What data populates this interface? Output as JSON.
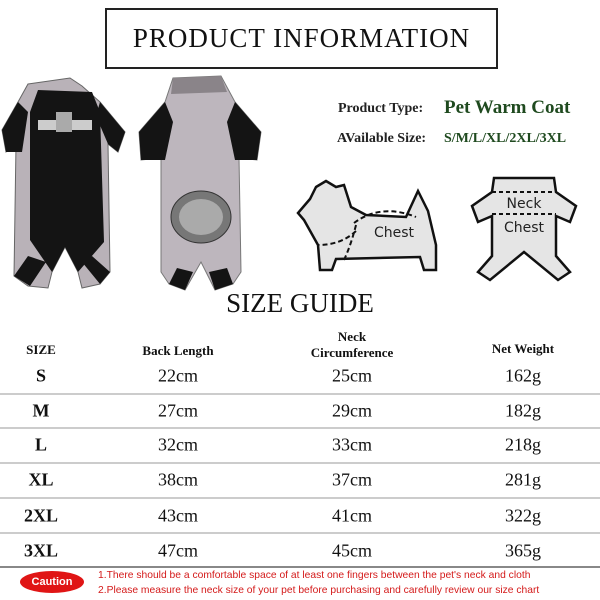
{
  "title": "PRODUCT INFORMATION",
  "product_type_label": "Product Type:",
  "product_type_value": "Pet Warm Coat",
  "available_size_label": "AVailable Size:",
  "available_size_value": "S/M/L/XL/2XL/3XL",
  "diagram_labels": {
    "dog_chest": "Chest",
    "coat_neck": "Neck",
    "coat_chest": "Chest"
  },
  "size_guide_title": "SIZE GUIDE",
  "table": {
    "headers": [
      "SIZE",
      "Back Length",
      "Neck Circumference",
      "Net Weight"
    ],
    "header_neck_line1": "Neck",
    "header_neck_line2": "Circumference",
    "rows": [
      [
        "S",
        "22cm",
        "25cm",
        "162g"
      ],
      [
        "M",
        "27cm",
        "29cm",
        "182g"
      ],
      [
        "L",
        "32cm",
        "33cm",
        "218g"
      ],
      [
        "XL",
        "38cm",
        "37cm",
        "281g"
      ],
      [
        "2XL",
        "43cm",
        "41cm",
        "322g"
      ],
      [
        "3XL",
        "47cm",
        "45cm",
        "365g"
      ]
    ]
  },
  "caution_label": "Caution",
  "notes": [
    "1.There should be a comfortable space of at least one fingers between the pet's neck and cloth",
    "2.Please measure the neck size of your pet before purchasing and carefully review our size chart"
  ],
  "colors": {
    "caution": "#e01515",
    "note_text": "#d41a1a",
    "product_value": "#1f4a1f",
    "coat_gray": "#b9b2b8",
    "coat_black": "#141414"
  }
}
